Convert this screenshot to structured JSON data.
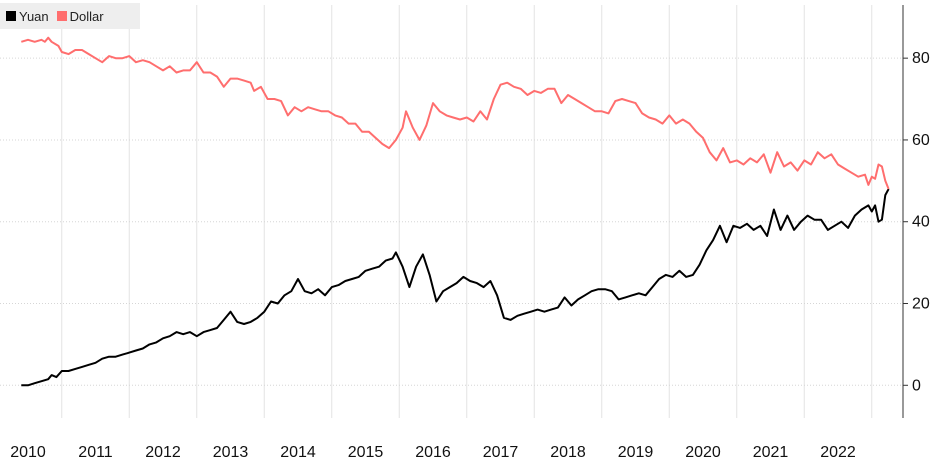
{
  "chart_data": {
    "type": "line",
    "title": "",
    "xlabel": "",
    "ylabel": "",
    "x_tick_labels": [
      "2010",
      "2011",
      "2012",
      "2013",
      "2014",
      "2015",
      "2016",
      "2017",
      "2018",
      "2019",
      "2020",
      "2021",
      "2022"
    ],
    "y_ticks": [
      0,
      20,
      40,
      60,
      80
    ],
    "xlim": [
      2009.9,
      2022.75
    ],
    "ylim": [
      -8,
      93
    ],
    "y_axis_side": "right",
    "grid": true,
    "legend": {
      "placement": "top-left"
    },
    "series": [
      {
        "name": "Yuan",
        "color": "#000000",
        "points": [
          [
            2009.9,
            0
          ],
          [
            2010.0,
            0
          ],
          [
            2010.1,
            0.5
          ],
          [
            2010.2,
            1
          ],
          [
            2010.3,
            1.5
          ],
          [
            2010.35,
            2.5
          ],
          [
            2010.42,
            2
          ],
          [
            2010.5,
            3.5
          ],
          [
            2010.6,
            3.5
          ],
          [
            2010.7,
            4
          ],
          [
            2010.8,
            4.5
          ],
          [
            2010.9,
            5
          ],
          [
            2011.0,
            5.5
          ],
          [
            2011.1,
            6.5
          ],
          [
            2011.2,
            7
          ],
          [
            2011.3,
            7
          ],
          [
            2011.4,
            7.5
          ],
          [
            2011.5,
            8
          ],
          [
            2011.6,
            8.5
          ],
          [
            2011.7,
            9
          ],
          [
            2011.8,
            10
          ],
          [
            2011.9,
            10.5
          ],
          [
            2012.0,
            11.5
          ],
          [
            2012.1,
            12
          ],
          [
            2012.2,
            13
          ],
          [
            2012.3,
            12.5
          ],
          [
            2012.4,
            13
          ],
          [
            2012.5,
            12
          ],
          [
            2012.6,
            13
          ],
          [
            2012.7,
            13.5
          ],
          [
            2012.8,
            14
          ],
          [
            2012.9,
            16
          ],
          [
            2013.0,
            18
          ],
          [
            2013.1,
            15.5
          ],
          [
            2013.2,
            15
          ],
          [
            2013.3,
            15.5
          ],
          [
            2013.4,
            16.5
          ],
          [
            2013.5,
            18
          ],
          [
            2013.6,
            20.5
          ],
          [
            2013.7,
            20
          ],
          [
            2013.8,
            22
          ],
          [
            2013.9,
            23
          ],
          [
            2014.0,
            26
          ],
          [
            2014.1,
            23
          ],
          [
            2014.2,
            22.5
          ],
          [
            2014.3,
            23.5
          ],
          [
            2014.4,
            22
          ],
          [
            2014.5,
            24
          ],
          [
            2014.6,
            24.5
          ],
          [
            2014.7,
            25.5
          ],
          [
            2014.8,
            26
          ],
          [
            2014.9,
            26.5
          ],
          [
            2015.0,
            28
          ],
          [
            2015.1,
            28.5
          ],
          [
            2015.2,
            29
          ],
          [
            2015.3,
            30.5
          ],
          [
            2015.4,
            31
          ],
          [
            2015.45,
            32.5
          ],
          [
            2015.55,
            29
          ],
          [
            2015.65,
            24
          ],
          [
            2015.75,
            29
          ],
          [
            2015.85,
            32
          ],
          [
            2015.95,
            27
          ],
          [
            2016.05,
            20.5
          ],
          [
            2016.15,
            23
          ],
          [
            2016.25,
            24
          ],
          [
            2016.35,
            25
          ],
          [
            2016.45,
            26.5
          ],
          [
            2016.55,
            25.5
          ],
          [
            2016.65,
            25
          ],
          [
            2016.75,
            24
          ],
          [
            2016.85,
            25.5
          ],
          [
            2016.95,
            22
          ],
          [
            2017.05,
            16.5
          ],
          [
            2017.15,
            16
          ],
          [
            2017.25,
            17
          ],
          [
            2017.35,
            17.5
          ],
          [
            2017.45,
            18
          ],
          [
            2017.55,
            18.5
          ],
          [
            2017.65,
            18
          ],
          [
            2017.75,
            18.5
          ],
          [
            2017.85,
            19
          ],
          [
            2017.95,
            21.5
          ],
          [
            2018.05,
            19.5
          ],
          [
            2018.15,
            21
          ],
          [
            2018.25,
            22
          ],
          [
            2018.35,
            23
          ],
          [
            2018.45,
            23.5
          ],
          [
            2018.55,
            23.5
          ],
          [
            2018.65,
            23
          ],
          [
            2018.75,
            21
          ],
          [
            2018.85,
            21.5
          ],
          [
            2018.95,
            22
          ],
          [
            2019.05,
            22.5
          ],
          [
            2019.15,
            22
          ],
          [
            2019.25,
            24
          ],
          [
            2019.35,
            26
          ],
          [
            2019.45,
            27
          ],
          [
            2019.55,
            26.5
          ],
          [
            2019.65,
            28
          ],
          [
            2019.75,
            26.5
          ],
          [
            2019.85,
            27
          ],
          [
            2019.95,
            29.5
          ],
          [
            2020.05,
            33
          ],
          [
            2020.15,
            35.5
          ],
          [
            2020.25,
            39
          ],
          [
            2020.35,
            35
          ],
          [
            2020.45,
            39
          ],
          [
            2020.55,
            38.5
          ],
          [
            2020.65,
            39.5
          ],
          [
            2020.75,
            38
          ],
          [
            2020.85,
            39
          ],
          [
            2020.95,
            36.5
          ],
          [
            2021.05,
            43
          ],
          [
            2021.15,
            38
          ],
          [
            2021.25,
            41.5
          ],
          [
            2021.35,
            38
          ],
          [
            2021.45,
            40
          ],
          [
            2021.55,
            41.5
          ],
          [
            2021.65,
            40.5
          ],
          [
            2021.75,
            40.5
          ],
          [
            2021.85,
            38
          ],
          [
            2021.95,
            39
          ],
          [
            2022.05,
            40
          ],
          [
            2022.15,
            38.5
          ],
          [
            2022.25,
            41.5
          ],
          [
            2022.35,
            43
          ],
          [
            2022.45,
            44
          ],
          [
            2022.5,
            42.5
          ],
          [
            2022.55,
            44
          ],
          [
            2022.6,
            40
          ],
          [
            2022.65,
            40.5
          ],
          [
            2022.7,
            46.5
          ],
          [
            2022.75,
            48
          ]
        ]
      },
      {
        "name": "Dollar",
        "color": "#ff6e6e",
        "points": [
          [
            2009.9,
            84
          ],
          [
            2010.0,
            84.5
          ],
          [
            2010.1,
            84
          ],
          [
            2010.2,
            84.5
          ],
          [
            2010.25,
            84
          ],
          [
            2010.3,
            85
          ],
          [
            2010.35,
            84
          ],
          [
            2010.45,
            83
          ],
          [
            2010.5,
            81.5
          ],
          [
            2010.6,
            81
          ],
          [
            2010.7,
            82
          ],
          [
            2010.8,
            82
          ],
          [
            2010.9,
            81
          ],
          [
            2011.0,
            80
          ],
          [
            2011.1,
            79
          ],
          [
            2011.2,
            80.5
          ],
          [
            2011.3,
            80
          ],
          [
            2011.4,
            80
          ],
          [
            2011.5,
            80.5
          ],
          [
            2011.6,
            79
          ],
          [
            2011.7,
            79.5
          ],
          [
            2011.8,
            79
          ],
          [
            2011.9,
            78
          ],
          [
            2012.0,
            77
          ],
          [
            2012.1,
            78
          ],
          [
            2012.2,
            76.5
          ],
          [
            2012.3,
            77
          ],
          [
            2012.4,
            77
          ],
          [
            2012.5,
            79
          ],
          [
            2012.6,
            76.5
          ],
          [
            2012.7,
            76.5
          ],
          [
            2012.8,
            75.5
          ],
          [
            2012.9,
            73
          ],
          [
            2013.0,
            75
          ],
          [
            2013.1,
            75
          ],
          [
            2013.2,
            74.5
          ],
          [
            2013.3,
            74
          ],
          [
            2013.35,
            72
          ],
          [
            2013.45,
            73
          ],
          [
            2013.55,
            70
          ],
          [
            2013.65,
            70
          ],
          [
            2013.75,
            69.5
          ],
          [
            2013.85,
            66
          ],
          [
            2013.95,
            68
          ],
          [
            2014.05,
            67
          ],
          [
            2014.15,
            68
          ],
          [
            2014.25,
            67.5
          ],
          [
            2014.35,
            67
          ],
          [
            2014.45,
            67
          ],
          [
            2014.55,
            66
          ],
          [
            2014.65,
            65.5
          ],
          [
            2014.75,
            64
          ],
          [
            2014.85,
            64
          ],
          [
            2014.95,
            62
          ],
          [
            2015.05,
            62
          ],
          [
            2015.15,
            60.5
          ],
          [
            2015.25,
            59
          ],
          [
            2015.35,
            58
          ],
          [
            2015.45,
            60
          ],
          [
            2015.55,
            63
          ],
          [
            2015.6,
            67
          ],
          [
            2015.7,
            63
          ],
          [
            2015.8,
            60
          ],
          [
            2015.9,
            63.5
          ],
          [
            2016.0,
            69
          ],
          [
            2016.1,
            67
          ],
          [
            2016.2,
            66
          ],
          [
            2016.3,
            65.5
          ],
          [
            2016.4,
            65
          ],
          [
            2016.5,
            65.5
          ],
          [
            2016.6,
            64.5
          ],
          [
            2016.7,
            67
          ],
          [
            2016.8,
            65
          ],
          [
            2016.9,
            70
          ],
          [
            2017.0,
            73.5
          ],
          [
            2017.1,
            74
          ],
          [
            2017.2,
            73
          ],
          [
            2017.3,
            72.5
          ],
          [
            2017.4,
            71
          ],
          [
            2017.5,
            72
          ],
          [
            2017.6,
            71.5
          ],
          [
            2017.7,
            72.5
          ],
          [
            2017.8,
            72.5
          ],
          [
            2017.9,
            69
          ],
          [
            2018.0,
            71
          ],
          [
            2018.1,
            70
          ],
          [
            2018.2,
            69
          ],
          [
            2018.3,
            68
          ],
          [
            2018.4,
            67
          ],
          [
            2018.5,
            67
          ],
          [
            2018.6,
            66.5
          ],
          [
            2018.7,
            69.5
          ],
          [
            2018.8,
            70
          ],
          [
            2018.9,
            69.5
          ],
          [
            2019.0,
            69
          ],
          [
            2019.1,
            66.5
          ],
          [
            2019.2,
            65.5
          ],
          [
            2019.3,
            65
          ],
          [
            2019.4,
            64
          ],
          [
            2019.5,
            66
          ],
          [
            2019.6,
            64
          ],
          [
            2019.7,
            65
          ],
          [
            2019.8,
            64
          ],
          [
            2019.9,
            62
          ],
          [
            2020.0,
            60.5
          ],
          [
            2020.1,
            57
          ],
          [
            2020.2,
            55
          ],
          [
            2020.3,
            58
          ],
          [
            2020.4,
            54.5
          ],
          [
            2020.5,
            55
          ],
          [
            2020.6,
            54
          ],
          [
            2020.7,
            55.5
          ],
          [
            2020.8,
            54.5
          ],
          [
            2020.9,
            56.5
          ],
          [
            2021.0,
            52
          ],
          [
            2021.1,
            57
          ],
          [
            2021.2,
            53.5
          ],
          [
            2021.3,
            54.5
          ],
          [
            2021.4,
            52.5
          ],
          [
            2021.5,
            55
          ],
          [
            2021.6,
            54
          ],
          [
            2021.7,
            57
          ],
          [
            2021.8,
            55.5
          ],
          [
            2021.9,
            56.5
          ],
          [
            2022.0,
            54
          ],
          [
            2022.1,
            53
          ],
          [
            2022.2,
            52
          ],
          [
            2022.3,
            51
          ],
          [
            2022.4,
            51.5
          ],
          [
            2022.45,
            49
          ],
          [
            2022.5,
            51
          ],
          [
            2022.55,
            50.5
          ],
          [
            2022.6,
            54
          ],
          [
            2022.65,
            53.5
          ],
          [
            2022.7,
            50
          ],
          [
            2022.75,
            48
          ]
        ]
      }
    ]
  }
}
